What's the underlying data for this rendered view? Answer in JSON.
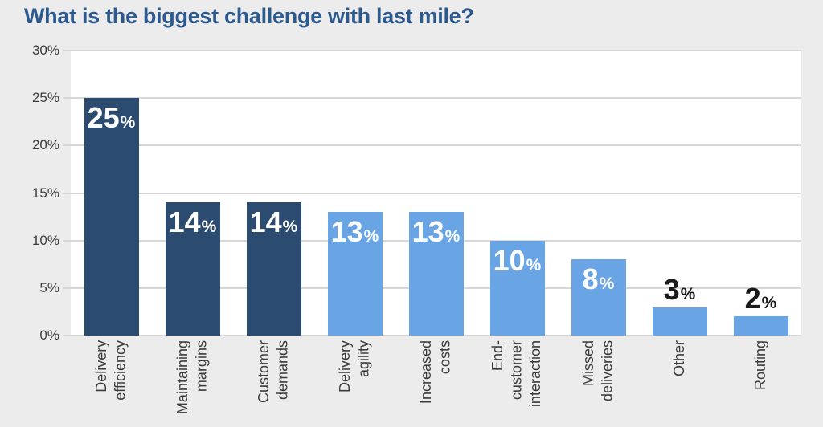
{
  "page": {
    "background": "#ececec",
    "title_color": "#2d5a8e"
  },
  "chart_data": {
    "type": "bar",
    "title": "What is the biggest challenge with last mile?",
    "categories": [
      "Delivery efficiency",
      "Maintaining margins",
      "Customer demands",
      "Delivery agility",
      "Increased costs",
      "End-customer interaction",
      "Missed deliveries",
      "Other",
      "Routing"
    ],
    "category_labels": [
      [
        "Delivery",
        "efficiency"
      ],
      [
        "Maintaining",
        "margins"
      ],
      [
        "Customer",
        "demands"
      ],
      [
        "Delivery",
        "agility"
      ],
      [
        "Increased",
        "costs"
      ],
      [
        "End-",
        "customer",
        "interaction"
      ],
      [
        "Missed",
        "deliveries"
      ],
      [
        "Other"
      ],
      [
        "Routing"
      ]
    ],
    "values": [
      25,
      14,
      14,
      13,
      13,
      10,
      8,
      3,
      2
    ],
    "value_suffix": "%",
    "bar_colors": [
      "#2b4b70",
      "#2b4b70",
      "#2b4b70",
      "#69a4e5",
      "#69a4e5",
      "#69a4e5",
      "#69a4e5",
      "#69a4e5",
      "#69a4e5"
    ],
    "label_positions": [
      "inside",
      "inside",
      "inside",
      "inside",
      "inside",
      "inside",
      "inside",
      "above",
      "above"
    ],
    "label_color_inside": "#ffffff",
    "label_color_above": "#1a1a1a",
    "xlabel": "",
    "ylabel": "",
    "ylim": [
      0,
      30
    ],
    "ytick_values": [
      30,
      25,
      20,
      15,
      10,
      5,
      0
    ],
    "ytick_labels": [
      "30%",
      "25%",
      "20%",
      "15%",
      "10%",
      "5%",
      "0%"
    ],
    "grid": true,
    "gridline_color": "#d7d7d7",
    "plot_background": "#ffffff",
    "legend": "none"
  }
}
